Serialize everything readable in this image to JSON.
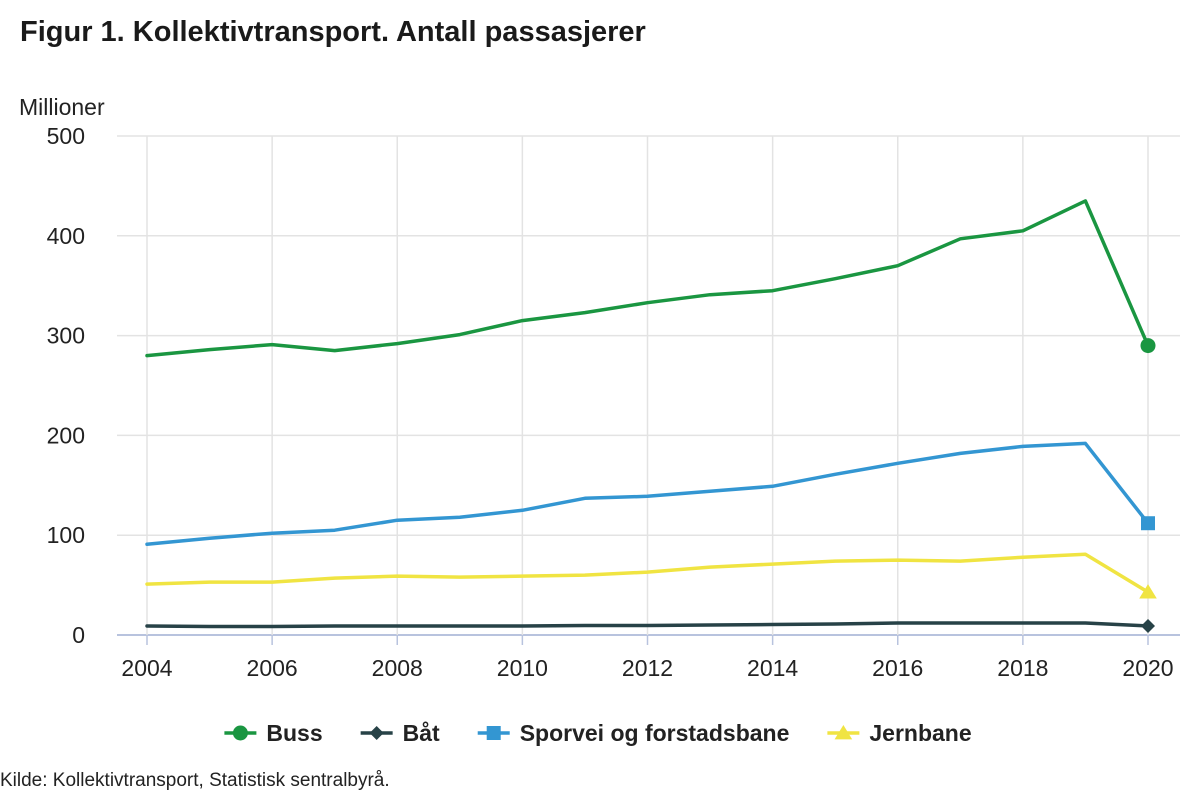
{
  "title": "Figur 1. Kollektivtransport. Antall passasjerer",
  "source": "Kilde: Kollektivtransport, Statistisk sentralbyrå.",
  "chart_data": {
    "type": "line",
    "title": "Figur 1. Kollektivtransport. Antall passasjerer",
    "ylabel": "Millioner",
    "xlabel": "",
    "x": [
      2004,
      2005,
      2006,
      2007,
      2008,
      2009,
      2010,
      2011,
      2012,
      2013,
      2014,
      2015,
      2016,
      2017,
      2018,
      2019,
      2020
    ],
    "xticks": [
      "2004",
      "2006",
      "2008",
      "2010",
      "2012",
      "2014",
      "2016",
      "2018",
      "2020"
    ],
    "yticks": [
      "0",
      "100",
      "200",
      "300",
      "400",
      "500"
    ],
    "ylim": [
      0,
      500
    ],
    "grid": true,
    "legend_position": "bottom",
    "series": [
      {
        "name": "Buss",
        "color": "#1a9641",
        "marker": "circle",
        "values": [
          280,
          286,
          291,
          285,
          292,
          301,
          315,
          323,
          333,
          341,
          345,
          357,
          370,
          397,
          405,
          435,
          290
        ]
      },
      {
        "name": "Båt",
        "color": "#274247",
        "marker": "diamond",
        "values": [
          9,
          8.5,
          8.5,
          9,
          9,
          9,
          9,
          9.5,
          9.5,
          10,
          10.5,
          11,
          12,
          12,
          12,
          12,
          9
        ]
      },
      {
        "name": "Sporvei og forstadsbane",
        "color": "#3396d2",
        "marker": "square",
        "values": [
          91,
          97,
          102,
          105,
          115,
          118,
          125,
          137,
          139,
          144,
          149,
          161,
          172,
          182,
          189,
          192,
          112
        ]
      },
      {
        "name": "Jernbane",
        "color": "#f0e442",
        "marker": "triangle",
        "values": [
          51,
          53,
          53,
          57,
          59,
          58,
          59,
          60,
          63,
          68,
          71,
          74,
          75,
          74,
          78,
          81,
          43
        ]
      }
    ]
  }
}
